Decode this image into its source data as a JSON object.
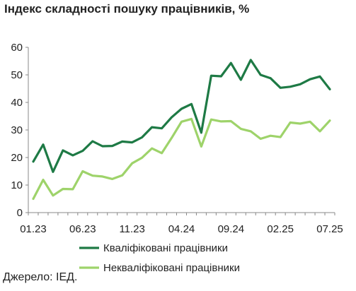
{
  "chart_data": {
    "type": "line",
    "title": "Індекс складності пошуку працівників, %",
    "ylim": [
      0,
      60
    ],
    "yticks": [
      0,
      10,
      20,
      30,
      40,
      50,
      60
    ],
    "x": [
      "01.23",
      "02.23",
      "03.23",
      "04.23",
      "05.23",
      "06.23",
      "07.23",
      "08.23",
      "09.23",
      "10.23",
      "11.23",
      "12.23",
      "01.24",
      "02.24",
      "03.24",
      "04.24",
      "05.24",
      "06.24",
      "07.24",
      "08.24",
      "09.24",
      "10.24",
      "11.24",
      "12.24",
      "01.25",
      "02.25",
      "03.25",
      "04.25",
      "05.25",
      "06.25",
      "07.25"
    ],
    "xtick_labels": [
      "01.23",
      "06.23",
      "11.23",
      "04.24",
      "09.24",
      "02.25",
      "07.25"
    ],
    "grid": false,
    "legend_position": "bottom",
    "series": [
      {
        "name": "Кваліфіковані працівники",
        "color": "#1e7a45",
        "values": [
          18.5,
          24.7,
          14.8,
          22.6,
          20.8,
          22.4,
          25.9,
          24.1,
          24.2,
          25.8,
          25.5,
          27.3,
          31.0,
          30.6,
          34.6,
          37.7,
          39.4,
          29.0,
          49.7,
          49.5,
          54.3,
          48.2,
          55.4,
          50.0,
          48.8,
          45.3,
          45.7,
          46.6,
          48.4,
          49.4,
          44.8
        ]
      },
      {
        "name": "Некваліфіковані працівники",
        "color": "#9ed36a",
        "values": [
          5.0,
          11.9,
          6.2,
          8.6,
          8.5,
          15.0,
          13.4,
          13.1,
          12.2,
          13.5,
          17.9,
          19.9,
          23.3,
          21.6,
          27.1,
          33.0,
          34.0,
          24.0,
          33.8,
          33.1,
          33.2,
          30.4,
          29.5,
          26.8,
          27.9,
          27.4,
          32.7,
          32.3,
          33.0,
          29.5,
          33.4
        ]
      }
    ]
  },
  "source": "Джерело: ІЕД."
}
